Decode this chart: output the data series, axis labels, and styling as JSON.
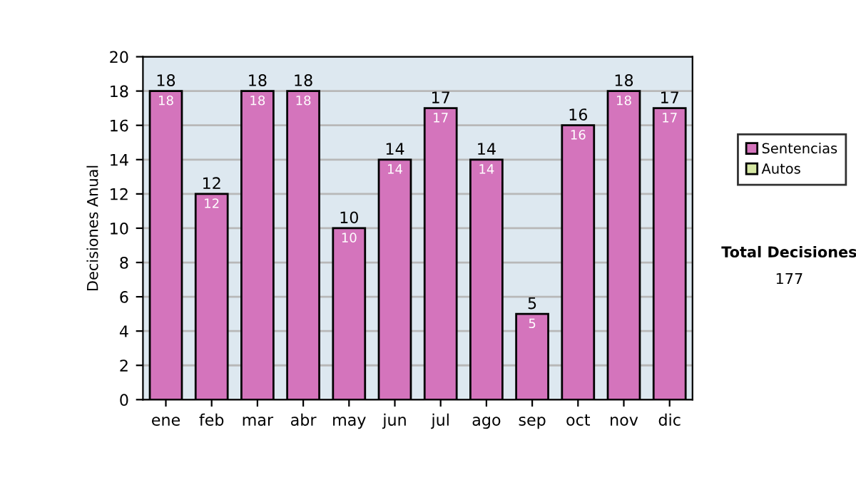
{
  "chart_data": {
    "type": "bar",
    "ylabel": "Decisiones Anual",
    "stacked": true,
    "categories": [
      "ene",
      "feb",
      "mar",
      "abr",
      "may",
      "jun",
      "jul",
      "ago",
      "sep",
      "oct",
      "nov",
      "dic"
    ],
    "series": [
      {
        "name": "Sentencias",
        "color": "#d474bc",
        "values": [
          18,
          12,
          18,
          18,
          10,
          14,
          17,
          14,
          5,
          16,
          18,
          17
        ],
        "value_labels": [
          "18",
          "12",
          "18",
          "18",
          "10",
          "14",
          "17",
          "14",
          "5",
          "16",
          "18",
          "17"
        ]
      },
      {
        "name": "Autos",
        "color": "#d6e8a4",
        "values": [
          0,
          0,
          0,
          0,
          0,
          0,
          0,
          0,
          0,
          0,
          0,
          0
        ]
      }
    ],
    "totals": [
      "18",
      "12",
      "18",
      "18",
      "10",
      "14",
      "17",
      "14",
      "5",
      "16",
      "18",
      "17"
    ],
    "ylim": [
      0,
      20
    ],
    "yticks": [
      0,
      2,
      4,
      6,
      8,
      10,
      12,
      14,
      16,
      18,
      20
    ],
    "grid": "y",
    "legend": "right",
    "annotations": [
      "Total Decisiones",
      "177"
    ]
  }
}
